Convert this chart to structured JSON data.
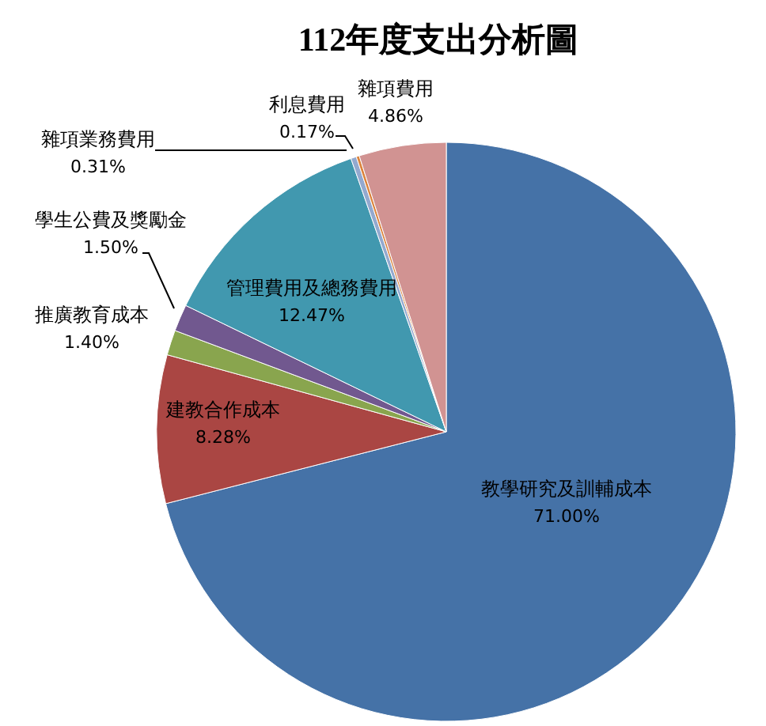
{
  "chart_data": {
    "type": "pie",
    "title": "112年度支出分析圖",
    "categories": [
      "教學研究及訓輔成本",
      "建教合作成本",
      "推廣教育成本",
      "學生公費及獎勵金",
      "管理費用及總務費用",
      "雜項業務費用",
      "利息費用",
      "雜項費用"
    ],
    "values": [
      71.0,
      8.28,
      1.4,
      1.5,
      12.47,
      0.31,
      0.17,
      4.86
    ],
    "colors": [
      "#4572a7",
      "#aa4643",
      "#89a54e",
      "#71588f",
      "#4198af",
      "#93a9cf",
      "#db843d",
      "#d19392"
    ],
    "value_labels": [
      "71.00%",
      "8.28%",
      "1.40%",
      "1.50%",
      "12.47%",
      "0.31%",
      "0.17%",
      "4.86%"
    ],
    "legend": false
  }
}
